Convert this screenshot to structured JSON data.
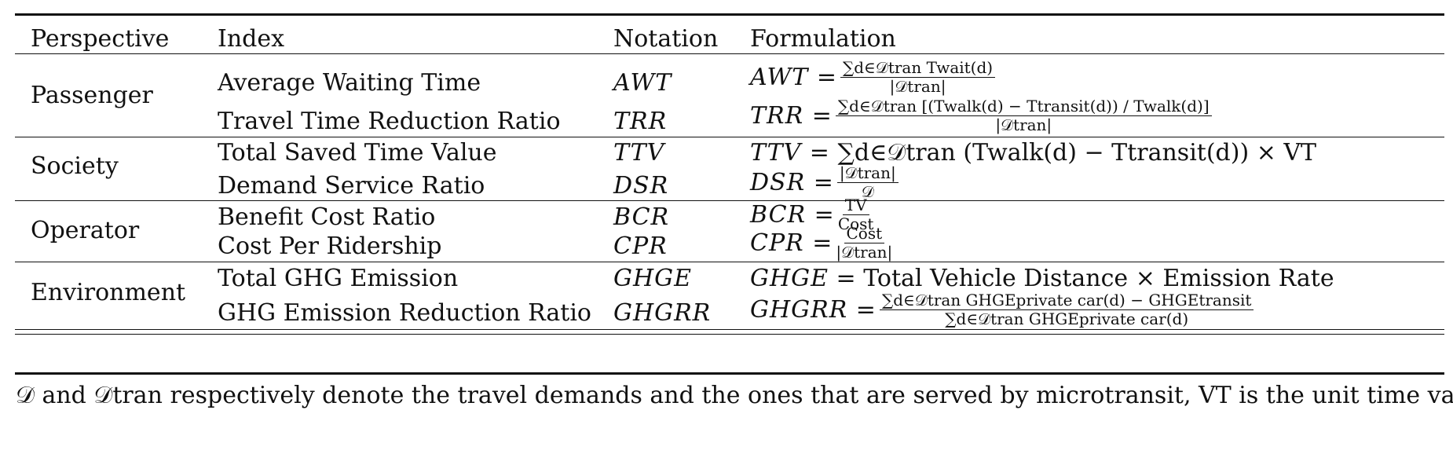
{
  "header": {
    "perspective": "Perspective",
    "index": "Index",
    "notation": "Notation",
    "formulation": "Formulation"
  },
  "groups": [
    {
      "name": "Passenger",
      "rows": [
        {
          "index": "Average Waiting Time",
          "notation": "AWT",
          "lhs": "AWT =",
          "num": "∑d∈𝒟tran Twait(d)",
          "den": "|𝒟tran|"
        },
        {
          "index": "Travel Time Reduction Ratio",
          "notation": "TRR",
          "lhs": "TRR =",
          "num": "∑d∈𝒟tran [(Twalk(d) − Ttransit(d)) / Twalk(d)]",
          "den": "|𝒟tran|"
        }
      ]
    },
    {
      "name": "Society",
      "rows": [
        {
          "index": "Total Saved Time Value",
          "notation": "TTV",
          "lhs": "TTV =",
          "expr": "∑d∈𝒟tran (Twalk(d) − Ttransit(d)) × VT"
        },
        {
          "index": "Demand Service Ratio",
          "notation": "DSR",
          "lhs": "DSR =",
          "num": "|𝒟tran|",
          "den": "𝒟"
        }
      ]
    },
    {
      "name": "Operator",
      "rows": [
        {
          "index": "Benefit Cost Ratio",
          "notation": "BCR",
          "lhs": "BCR =",
          "num": "TV",
          "den": "Cost"
        },
        {
          "index": "Cost Per Ridership",
          "notation": "CPR",
          "lhs": "CPR =",
          "num": "Cost",
          "den": "|𝒟tran|"
        }
      ]
    },
    {
      "name": "Environment",
      "rows": [
        {
          "index": "Total GHG Emission",
          "notation": "GHGE",
          "lhs": "GHGE",
          "expr": "= Total Vehicle Distance × Emission Rate"
        },
        {
          "index": "GHG Emission Reduction Ratio",
          "notation": "GHGRR",
          "lhs": "GHGRR =",
          "num": "∑d∈𝒟tran GHGEprivate car(d) − GHGEtransit",
          "den": "∑d∈𝒟tran GHGEprivate car(d)"
        }
      ]
    }
  ],
  "note": "𝒟 and 𝒟tran respectively denote the travel demands and the ones that are served by microtransit, VT is the unit time value"
}
